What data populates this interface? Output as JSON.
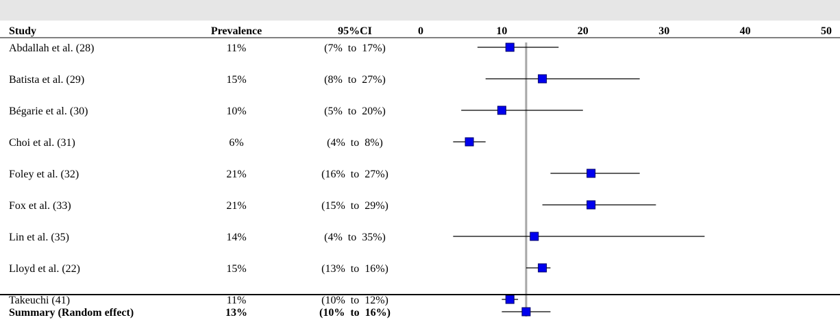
{
  "chart_data": {
    "type": "forest",
    "columns": {
      "study": "Study",
      "prevalence": "Prevalence",
      "ci": "95%CI"
    },
    "xlim": [
      0,
      50
    ],
    "xticks": [
      "0",
      "10",
      "20",
      "30",
      "40",
      "50"
    ],
    "xtick_values": [
      0,
      10,
      20,
      30,
      40,
      50
    ],
    "grid": false,
    "reference_line": 13,
    "studies": [
      {
        "study": "Abdallah et al. (28)",
        "prevalence_label": "11%",
        "ci_label": "(7%  to  17%)",
        "estimate": 11,
        "lower": 7,
        "upper": 17
      },
      {
        "study": "Batista et al. (29)",
        "prevalence_label": "15%",
        "ci_label": "(8%  to  27%)",
        "estimate": 15,
        "lower": 8,
        "upper": 27
      },
      {
        "study": "Bégarie et al. (30)",
        "prevalence_label": "10%",
        "ci_label": "(5%  to  20%)",
        "estimate": 10,
        "lower": 5,
        "upper": 20
      },
      {
        "study": "Choi et al. (31)",
        "prevalence_label": "6%",
        "ci_label": "(4%  to  8%)",
        "estimate": 6,
        "lower": 4,
        "upper": 8
      },
      {
        "study": "Foley et al. (32)",
        "prevalence_label": "21%",
        "ci_label": "(16%  to  27%)",
        "estimate": 21,
        "lower": 16,
        "upper": 27
      },
      {
        "study": "Fox et al. (33)",
        "prevalence_label": "21%",
        "ci_label": "(15%  to  29%)",
        "estimate": 21,
        "lower": 15,
        "upper": 29
      },
      {
        "study": "Lin et al. (35)",
        "prevalence_label": "14%",
        "ci_label": "(4%  to  35%)",
        "estimate": 14,
        "lower": 4,
        "upper": 35
      },
      {
        "study": "Lloyd et al. (22)",
        "prevalence_label": "15%",
        "ci_label": "(13%  to  16%)",
        "estimate": 15,
        "lower": 13,
        "upper": 16
      },
      {
        "study": "Takeuchi (41)",
        "prevalence_label": "11%",
        "ci_label": "(10%  to  12%)",
        "estimate": 11,
        "lower": 10,
        "upper": 12
      }
    ],
    "summary": {
      "study": "Summary (Random effect)",
      "prevalence_label": "13%",
      "ci_label": "(10%  to  16%)",
      "estimate": 13,
      "lower": 10,
      "upper": 16
    },
    "colors": {
      "marker": "#0000ee",
      "marker_edge": "#000066",
      "reference_line": "#a6a6a6",
      "ci_line": "#000000",
      "top_band": "#e6e6e6"
    }
  }
}
